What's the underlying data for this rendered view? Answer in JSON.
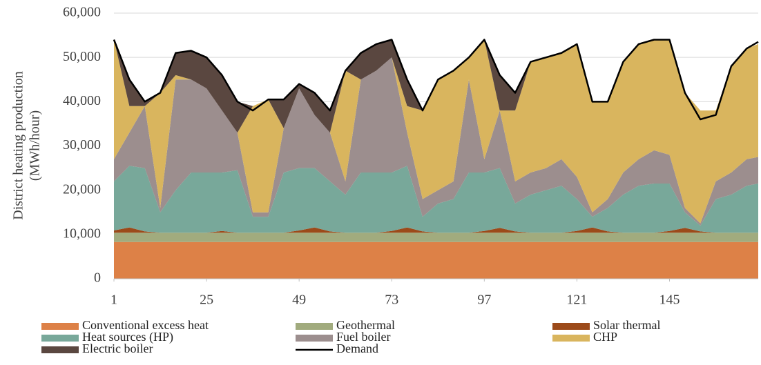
{
  "chart_data": {
    "type": "stacked_area",
    "y_label": [
      "District heating production",
      "(MWh/hour)"
    ],
    "x": [
      1,
      5,
      9,
      13,
      17,
      21,
      25,
      29,
      33,
      37,
      41,
      45,
      49,
      53,
      57,
      61,
      65,
      69,
      73,
      77,
      81,
      85,
      89,
      93,
      97,
      101,
      105,
      109,
      113,
      117,
      121,
      125,
      129,
      133,
      137,
      141,
      145,
      149,
      153,
      157,
      161,
      165,
      168
    ],
    "xlim": [
      1,
      168
    ],
    "xticks": [
      1,
      25,
      49,
      73,
      97,
      121,
      145
    ],
    "ylim": [
      0,
      60000
    ],
    "yticks": [
      0,
      {
        "value": 10000,
        "label": "10,000"
      },
      {
        "value": 20000,
        "label": "20,000"
      },
      {
        "value": 30000,
        "label": "30,000"
      },
      {
        "value": 40000,
        "label": "40,000"
      },
      {
        "value": 50000,
        "label": "50,000"
      },
      {
        "value": 60000,
        "label": "60,000"
      }
    ],
    "grid": true,
    "legend": "bottom",
    "series": [
      {
        "name": "Conventional excess heat",
        "color": "#dd8147",
        "values": [
          8300,
          8300,
          8300,
          8300,
          8300,
          8300,
          8300,
          8300,
          8300,
          8300,
          8300,
          8300,
          8300,
          8300,
          8300,
          8300,
          8300,
          8300,
          8300,
          8300,
          8300,
          8300,
          8300,
          8300,
          8300,
          8300,
          8300,
          8300,
          8300,
          8300,
          8300,
          8300,
          8300,
          8300,
          8300,
          8300,
          8300,
          8300,
          8300,
          8300,
          8300,
          8300,
          8300
        ]
      },
      {
        "name": "Geothermal",
        "color": "#a1ab7e",
        "values": [
          2100,
          2100,
          2100,
          2100,
          2100,
          2100,
          2100,
          2100,
          2100,
          2100,
          2100,
          2100,
          2100,
          2100,
          2100,
          2100,
          2100,
          2100,
          2100,
          2100,
          2100,
          2100,
          2100,
          2100,
          2100,
          2100,
          2100,
          2100,
          2100,
          2100,
          2100,
          2100,
          2100,
          2100,
          2100,
          2100,
          2100,
          2100,
          2100,
          2100,
          2100,
          2100,
          2100
        ]
      },
      {
        "name": "Solar thermal",
        "color": "#9c4a1a",
        "values": [
          500,
          1200,
          300,
          0,
          0,
          0,
          0,
          400,
          0,
          0,
          0,
          0,
          500,
          1200,
          300,
          0,
          0,
          0,
          400,
          1200,
          300,
          0,
          0,
          0,
          400,
          1100,
          300,
          0,
          0,
          0,
          400,
          1200,
          300,
          0,
          0,
          0,
          400,
          1100,
          300,
          0,
          0,
          0,
          0
        ]
      },
      {
        "name": "Heat sources (HP)",
        "color": "#78a89a",
        "values": [
          11100,
          13900,
          14300,
          4600,
          9600,
          13600,
          13600,
          13200,
          14100,
          3600,
          3600,
          13600,
          14100,
          13400,
          11300,
          8600,
          13600,
          13600,
          13200,
          13900,
          3300,
          6600,
          7600,
          13600,
          13200,
          13500,
          6300,
          8600,
          9600,
          10600,
          7200,
          2400,
          5300,
          8600,
          10600,
          11100,
          10700,
          3500,
          1300,
          7600,
          8600,
          10600,
          11100
        ]
      },
      {
        "name": "Fuel boiler",
        "color": "#9c8e8e",
        "values": [
          5000,
          7500,
          14000,
          1000,
          25000,
          21000,
          19000,
          14000,
          8500,
          1000,
          1000,
          10000,
          18000,
          12000,
          11000,
          3000,
          21000,
          23000,
          26000,
          7500,
          4000,
          3000,
          4000,
          21000,
          3000,
          13000,
          5000,
          5000,
          5000,
          6000,
          5000,
          1000,
          2000,
          5000,
          6000,
          7500,
          6500,
          1000,
          500,
          4000,
          5000,
          6000,
          6000
        ]
      },
      {
        "name": "CHP",
        "color": "#d9b55e",
        "values": [
          27000,
          6000,
          0,
          26000,
          1000,
          0,
          0,
          0,
          0,
          24000,
          25500,
          0,
          0,
          0,
          0,
          25000,
          0,
          0,
          0,
          6000,
          20000,
          25000,
          25000,
          5000,
          27000,
          0,
          16000,
          25000,
          25000,
          24000,
          30000,
          25000,
          22000,
          25000,
          26000,
          25000,
          26000,
          26000,
          25500,
          16000,
          24000,
          25000,
          25500
        ]
      },
      {
        "name": "Electric boiler",
        "color": "#5a4740",
        "values": [
          0,
          6000,
          1000,
          0,
          5000,
          6500,
          7000,
          8000,
          7000,
          0,
          0,
          6500,
          1000,
          5000,
          5000,
          0,
          6000,
          6000,
          4000,
          6000,
          0,
          0,
          0,
          0,
          0,
          8000,
          4000,
          0,
          0,
          0,
          0,
          0,
          0,
          0,
          0,
          0,
          0,
          0,
          0,
          0,
          0,
          0,
          0
        ]
      }
    ],
    "line": {
      "name": "Demand",
      "color": "#000000",
      "values": [
        54000,
        45000,
        40000,
        42000,
        51000,
        51500,
        50000,
        46000,
        40000,
        38000,
        40500,
        40500,
        44000,
        42000,
        38000,
        47000,
        51000,
        53000,
        54000,
        45000,
        38000,
        45000,
        47000,
        50000,
        54000,
        46000,
        42000,
        49000,
        50000,
        51000,
        53000,
        40000,
        40000,
        49000,
        53000,
        54000,
        54000,
        42000,
        36000,
        37000,
        48000,
        52000,
        53500
      ]
    }
  }
}
